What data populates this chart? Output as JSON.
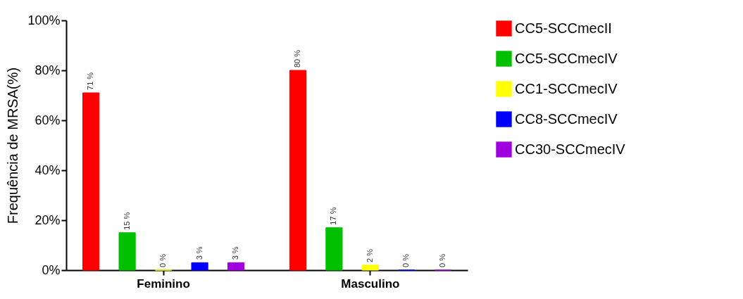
{
  "chart_data": {
    "type": "bar",
    "ylabel": "Frequência de MRSA(%)",
    "categories": [
      "Feminino",
      "Masculino"
    ],
    "series": [
      {
        "name": "CC5-SCCmecII",
        "color": "#ff0000",
        "values": [
          71,
          80
        ],
        "value_labels": [
          "71 %",
          "80 %"
        ]
      },
      {
        "name": "CC5-SCCmecIV",
        "color": "#00c000",
        "values": [
          15,
          17
        ],
        "value_labels": [
          "15 %",
          "17 %"
        ]
      },
      {
        "name": "CC1-SCCmecIV",
        "color": "#ffff00",
        "values": [
          0,
          2
        ],
        "value_labels": [
          "0 %",
          "2 %"
        ]
      },
      {
        "name": "CC8-SCCmecIV",
        "color": "#0000ff",
        "values": [
          3,
          0
        ],
        "value_labels": [
          "3 %",
          "0 %"
        ]
      },
      {
        "name": "CC30-SCCmecIV",
        "color": "#a000e0",
        "values": [
          3,
          0
        ],
        "value_labels": [
          "3 %",
          "0 %"
        ]
      }
    ],
    "ylim": [
      0,
      100
    ],
    "yticks": [
      {
        "value": 0,
        "label": "0%"
      },
      {
        "value": 20,
        "label": "20%"
      },
      {
        "value": 40,
        "label": "40%"
      },
      {
        "value": 60,
        "label": "60%"
      },
      {
        "value": 80,
        "label": "80%"
      },
      {
        "value": 100,
        "label": "100%"
      }
    ],
    "grid": false,
    "legend": "right"
  }
}
